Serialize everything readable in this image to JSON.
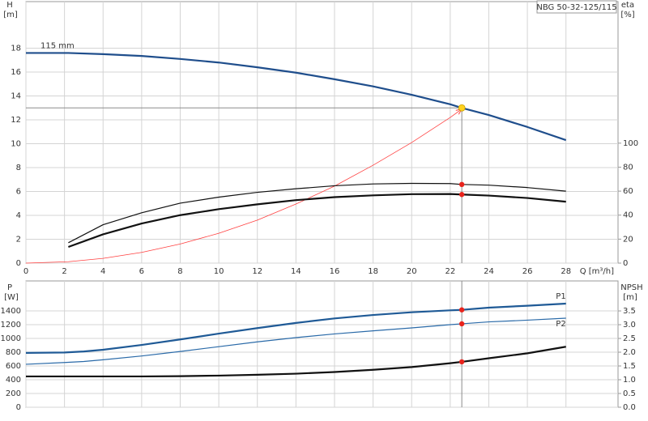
{
  "chart_data": [
    {
      "type": "line",
      "title": "NBG 50-32-125/115",
      "y_label": "H",
      "y_unit": "[m]",
      "y2_label": "eta",
      "y2_unit": "[%]",
      "x_label": "Q [m³/h]",
      "x": [
        0,
        2.2,
        4,
        6,
        8,
        10,
        12,
        14,
        16,
        18,
        20,
        22,
        22.6,
        24,
        26,
        28
      ],
      "xlim": [
        0,
        30.7
      ],
      "xticks": [
        0,
        2,
        4,
        6,
        8,
        10,
        12,
        14,
        16,
        18,
        20,
        22,
        24,
        26,
        28
      ],
      "ylim": [
        0,
        21.9
      ],
      "yticks": [
        0,
        2,
        4,
        6,
        8,
        10,
        12,
        14,
        16,
        18
      ],
      "y2lim": [
        0,
        218
      ],
      "y2ticks": [
        0,
        20,
        40,
        60,
        80,
        100
      ],
      "grid": true,
      "duty_x": 22.6,
      "guide_color": "#8c8c8c",
      "show_x_labels": true,
      "name_position": "start",
      "series": [
        {
          "name": "115 mm",
          "color": "#1f4e8c",
          "line": "thick",
          "marker_color": "#ffd21f",
          "guides": true,
          "values": [
            17.6,
            17.6,
            17.5,
            17.35,
            17.1,
            16.8,
            16.4,
            15.95,
            15.4,
            14.8,
            14.1,
            13.3,
            13.0,
            12.4,
            11.4,
            10.3
          ]
        },
        {
          "color": "#ff4040",
          "line": "hair",
          "arrow": true,
          "values": [
            0,
            0.12,
            0.4,
            0.9,
            1.6,
            2.5,
            3.6,
            4.95,
            6.45,
            8.2,
            10.1,
            12.2,
            12.9,
            null,
            null,
            null
          ]
        },
        {
          "color": "#111111",
          "line": "thin",
          "axis": "y2",
          "marker_color": "#e8231c",
          "values": [
            null,
            17,
            32,
            42,
            50,
            55,
            59,
            62,
            64.5,
            66,
            66.5,
            66.3,
            65.6,
            65,
            63,
            60
          ]
        },
        {
          "color": "#111111",
          "line": "thick",
          "axis": "y2",
          "marker_color": "#e8231c",
          "values": [
            null,
            13.5,
            24,
            33,
            40,
            45,
            49,
            52.5,
            55,
            56.5,
            57.5,
            57.6,
            57.2,
            56.3,
            54.3,
            51.2
          ]
        }
      ]
    },
    {
      "type": "line",
      "y_label": "P",
      "y_unit": "[W]",
      "y2_label": "NPSH",
      "y2_unit": "[m]",
      "x": [
        0,
        2,
        3,
        4,
        6,
        8,
        10,
        12,
        14,
        16,
        18,
        20,
        22,
        22.6,
        24,
        26,
        28
      ],
      "xlim": [
        0,
        30.7
      ],
      "xticks": [
        0,
        2,
        4,
        6,
        8,
        10,
        12,
        14,
        16,
        18,
        20,
        22,
        24,
        26,
        28
      ],
      "ylim": [
        0,
        1835
      ],
      "yticks": [
        0,
        200,
        400,
        600,
        800,
        1000,
        1200,
        1400
      ],
      "y2lim": [
        0,
        4.59
      ],
      "y2ticks": [
        {
          "value": 0,
          "label": "0.0"
        },
        0.5,
        {
          "value": 1,
          "label": "1.0"
        },
        1.5,
        {
          "value": 2,
          "label": "2.0"
        },
        2.5,
        {
          "value": 3,
          "label": "3.0"
        },
        3.5
      ],
      "grid": true,
      "duty_x": 22.6,
      "guide_color": "#8c8c8c",
      "show_x_labels": false,
      "name_position": "end",
      "series": [
        {
          "name": "P1",
          "color": "#1f5a96",
          "line": "thick",
          "marker_color": "#e8231c",
          "values": [
            790,
            795,
            810,
            835,
            905,
            985,
            1070,
            1150,
            1225,
            1290,
            1340,
            1380,
            1408,
            1415,
            1447,
            1475,
            1506
          ]
        },
        {
          "name": "P2",
          "color": "#2a6aa8",
          "line": "thin",
          "marker_color": "#e8231c",
          "values": [
            624,
            650,
            665,
            690,
            745,
            810,
            880,
            950,
            1012,
            1065,
            1110,
            1153,
            1200,
            1212,
            1240,
            1265,
            1294
          ]
        },
        {
          "color": "#111111",
          "line": "thick",
          "axis": "y2",
          "marker_color": "#e8231c",
          "values": [
            1.12,
            1.12,
            1.12,
            1.12,
            1.12,
            1.13,
            1.15,
            1.18,
            1.22,
            1.28,
            1.36,
            1.46,
            1.6,
            1.65,
            1.78,
            1.96,
            2.2
          ]
        }
      ]
    }
  ]
}
